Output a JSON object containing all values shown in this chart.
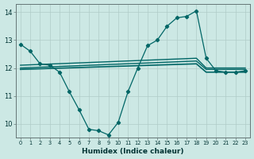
{
  "title": "",
  "xlabel": "Humidex (Indice chaleur)",
  "background_color": "#cce8e4",
  "grid_color": "#b0ccc8",
  "line_color": "#006666",
  "x_min": -0.5,
  "x_max": 23.5,
  "y_min": 9.5,
  "y_max": 14.3,
  "y_ticks": [
    10,
    11,
    12,
    13,
    14
  ],
  "x_ticks": [
    0,
    1,
    2,
    3,
    4,
    5,
    6,
    7,
    8,
    9,
    10,
    11,
    12,
    13,
    14,
    15,
    16,
    17,
    18,
    19,
    20,
    21,
    22,
    23
  ],
  "series": [
    {
      "x": [
        0,
        1,
        2,
        3,
        4,
        5,
        6,
        7,
        8,
        9,
        10,
        11,
        12,
        13,
        14,
        15,
        16,
        17,
        18,
        19,
        20,
        21,
        22,
        23
      ],
      "y": [
        12.85,
        12.6,
        12.15,
        12.1,
        11.85,
        11.15,
        10.5,
        9.8,
        9.75,
        9.6,
        10.05,
        11.15,
        12.0,
        12.8,
        13.0,
        13.5,
        13.8,
        13.85,
        14.05,
        12.35,
        11.9,
        11.85,
        11.85,
        11.9
      ],
      "with_markers": true
    },
    {
      "x": [
        0,
        18,
        19,
        23
      ],
      "y": [
        12.1,
        12.35,
        12.0,
        12.0
      ],
      "with_markers": false,
      "lw": 1.0
    },
    {
      "x": [
        0,
        18,
        19,
        23
      ],
      "y": [
        12.0,
        12.25,
        11.95,
        11.95
      ],
      "with_markers": false,
      "lw": 1.0
    },
    {
      "x": [
        0,
        18,
        19,
        23
      ],
      "y": [
        11.95,
        12.15,
        11.85,
        11.85
      ],
      "with_markers": false,
      "lw": 1.2
    }
  ]
}
